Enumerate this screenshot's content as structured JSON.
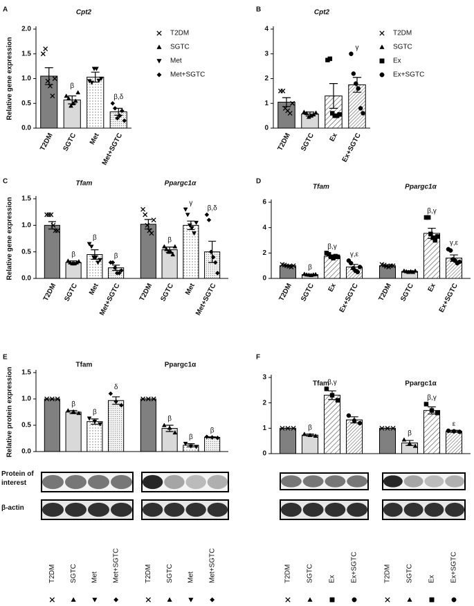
{
  "chart_data": [
    {
      "panel": "A",
      "type": "bar",
      "title": "Cpt2",
      "title_italic": true,
      "ylabel": "Relative gene expression",
      "legend": true,
      "categories": [
        "T2DM",
        "SGTC",
        "Met",
        "Met+SGTC"
      ],
      "markers": [
        "x",
        "tri-up",
        "tri-down",
        "diamond"
      ],
      "fills": [
        "#808080",
        "#d9d9d9",
        "dots",
        "dots-light"
      ],
      "ylim": [
        0,
        2
      ],
      "yticks": [
        {
          "value": 0,
          "label": "0.0"
        },
        {
          "value": 0.5,
          "label": "0.5"
        },
        {
          "value": 1,
          "label": "1.0"
        },
        {
          "value": 1.5,
          "label": "1.5"
        },
        {
          "value": 2,
          "label": "2.0"
        }
      ],
      "groups": [
        {
          "values": [
            1.05,
            0.57,
            1.03,
            0.33
          ],
          "errors": [
            0.17,
            0.08,
            0.1,
            0.07
          ],
          "points": [
            [
              1.5,
              1.6,
              0.95,
              0.85,
              0.65,
              1.0
            ],
            [
              0.65,
              0.6,
              0.45,
              0.5,
              0.55,
              0.72
            ],
            [
              0.95,
              0.92,
              1.2,
              1.2,
              0.96,
              1.0
            ],
            [
              0.5,
              0.4,
              0.2,
              0.25,
              0.35,
              0.15
            ]
          ],
          "annotations": [
            null,
            "β",
            null,
            "β,δ"
          ]
        }
      ]
    },
    {
      "panel": "B",
      "type": "bar",
      "title": "Cpt2",
      "title_italic": true,
      "legend": true,
      "categories": [
        "T2DM",
        "SGTC",
        "Ex",
        "Ex+SGTC"
      ],
      "markers": [
        "x",
        "tri-up",
        "square",
        "circle"
      ],
      "fills": [
        "#808080",
        "#d9d9d9",
        "hatch",
        "hatch-dense"
      ],
      "ylim": [
        0,
        4
      ],
      "yticks": [
        0,
        1,
        2,
        3,
        4
      ],
      "groups": [
        {
          "values": [
            1.05,
            0.57,
            1.3,
            1.75
          ],
          "errors": [
            0.18,
            0.08,
            0.5,
            0.3
          ],
          "points": [
            [
              1.5,
              1.5,
              0.8,
              0.7,
              0.6,
              1.0
            ],
            [
              0.65,
              0.6,
              0.45,
              0.5,
              0.55,
              0.62
            ],
            [
              2.75,
              2.8,
              0.6,
              0.5,
              0.5,
              0.55
            ],
            [
              3.0,
              2.2,
              1.8,
              1.6,
              0.8,
              0.6
            ]
          ],
          "annotations": [
            null,
            null,
            null,
            "γ"
          ]
        }
      ]
    },
    {
      "panel": "C",
      "type": "bar",
      "title_italic": true,
      "ylabel": "Relative gene expression",
      "categories": [
        "T2DM",
        "SGTC",
        "Met",
        "Met+SGTC"
      ],
      "markers": [
        "x",
        "tri-up",
        "tri-down",
        "diamond"
      ],
      "fills": [
        "#808080",
        "#d9d9d9",
        "dots",
        "dots-light"
      ],
      "ylim": [
        0,
        1.5
      ],
      "yticks": [
        {
          "value": 0,
          "label": "0.0"
        },
        {
          "value": 0.5,
          "label": "0.5"
        },
        {
          "value": 1,
          "label": "1.0"
        },
        {
          "value": 1.5,
          "label": "1.5"
        }
      ],
      "groups": [
        {
          "title": "Tfam",
          "values": [
            1.0,
            0.3,
            0.45,
            0.2
          ],
          "errors": [
            0.07,
            0.03,
            0.09,
            0.05
          ],
          "points": [
            [
              1.2,
              1.2,
              1.2,
              1.0,
              0.9,
              0.9
            ],
            [
              0.33,
              0.3,
              0.28,
              0.28,
              0.3,
              0.32
            ],
            [
              0.65,
              0.6,
              0.4,
              0.4,
              0.3,
              0.35
            ],
            [
              0.3,
              0.3,
              0.2,
              0.1,
              0.1,
              0.15
            ]
          ],
          "annotations": [
            null,
            "β",
            "β",
            "β"
          ]
        },
        {
          "title": "Ppargc1α",
          "values": [
            1.02,
            0.54,
            1.0,
            0.5
          ],
          "errors": [
            0.09,
            0.05,
            0.08,
            0.2
          ],
          "points": [
            [
              1.3,
              1.2,
              1.0,
              0.9,
              0.85,
              1.1
            ],
            [
              0.6,
              0.55,
              0.5,
              0.5,
              0.45,
              0.6
            ],
            [
              1.3,
              1.2,
              1.0,
              0.95,
              0.85,
              1.05
            ],
            [
              1.2,
              1.1,
              0.5,
              0.4,
              0.3,
              0.1
            ]
          ],
          "annotations": [
            null,
            "β",
            "γ",
            "β,δ"
          ]
        }
      ]
    },
    {
      "panel": "D",
      "type": "bar",
      "title_italic": true,
      "categories": [
        "T2DM",
        "SGTC",
        "Ex",
        "Ex+SGTC"
      ],
      "markers": [
        "x",
        "tri-up",
        "square",
        "circle"
      ],
      "fills": [
        "#808080",
        "#d9d9d9",
        "hatch",
        "hatch-dense"
      ],
      "ylim": [
        0,
        6
      ],
      "yticks": [
        0,
        2,
        4,
        6
      ],
      "groups": [
        {
          "title": "Tfam",
          "values": [
            1.0,
            0.3,
            1.75,
            0.9
          ],
          "errors": [
            0.05,
            0.03,
            0.1,
            0.2
          ],
          "points": [
            [
              1.1,
              1.05,
              1.0,
              0.95,
              0.9,
              1.0
            ],
            [
              0.35,
              0.3,
              0.28,
              0.25,
              0.3,
              0.32
            ],
            [
              2.0,
              1.9,
              1.7,
              1.6,
              1.75,
              1.7
            ],
            [
              1.4,
              1.2,
              0.8,
              0.6,
              0.5,
              0.9
            ]
          ],
          "annotations": [
            null,
            "β",
            "β,γ",
            "γ,ε"
          ]
        },
        {
          "title": "Ppargc1α",
          "values": [
            1.0,
            0.55,
            3.55,
            1.6
          ],
          "errors": [
            0.08,
            0.05,
            0.4,
            0.25
          ],
          "points": [
            [
              1.1,
              1.05,
              0.95,
              0.9,
              1.0,
              1.0
            ],
            [
              0.6,
              0.55,
              0.5,
              0.55,
              0.5,
              0.6
            ],
            [
              4.8,
              4.8,
              3.5,
              3.2,
              3.0,
              3.3
            ],
            [
              2.3,
              2.2,
              1.5,
              1.4,
              1.2,
              1.3
            ]
          ],
          "annotations": [
            null,
            null,
            "β,γ",
            "γ,ε"
          ]
        }
      ]
    },
    {
      "panel": "E",
      "type": "bar",
      "title_italic": false,
      "ylabel": "Relative protein expression",
      "labels_below": true,
      "blot_rows": [
        "Protein of interest",
        "β-actin"
      ],
      "categories": [
        "T2DM",
        "SGTC",
        "Met",
        "Met+SGTC"
      ],
      "markers": [
        "x",
        "tri-up",
        "tri-down",
        "diamond"
      ],
      "fills": [
        "#808080",
        "#d9d9d9",
        "dots",
        "dots-light"
      ],
      "ylim": [
        0,
        1.5
      ],
      "yticks": [
        {
          "value": 0,
          "label": "0.0"
        },
        {
          "value": 0.5,
          "label": "0.5"
        },
        {
          "value": 1,
          "label": "1.0"
        },
        {
          "value": 1.5,
          "label": "1.5"
        }
      ],
      "groups": [
        {
          "title": "Tfam",
          "values": [
            1.0,
            0.75,
            0.57,
            0.97
          ],
          "errors": [
            0,
            0.03,
            0.05,
            0.07
          ],
          "points": [
            [
              1,
              1,
              1
            ],
            [
              0.78,
              0.76,
              0.73
            ],
            [
              0.63,
              0.57,
              0.52
            ],
            [
              1.1,
              0.95,
              0.88
            ]
          ],
          "annotations": [
            null,
            "β",
            "β",
            "δ"
          ]
        },
        {
          "title": "Ppargc1α",
          "values": [
            1.0,
            0.44,
            0.12,
            0.27
          ],
          "errors": [
            0,
            0.06,
            0.03,
            0.01
          ],
          "points": [
            [
              1,
              1,
              1
            ],
            [
              0.5,
              0.45,
              0.36
            ],
            [
              0.15,
              0.1,
              0.09
            ],
            [
              0.28,
              0.27,
              0.26
            ]
          ],
          "annotations": [
            null,
            "β",
            "β",
            "β"
          ]
        }
      ]
    },
    {
      "panel": "F",
      "type": "bar",
      "title_italic": false,
      "labels_below": true,
      "categories": [
        "T2DM",
        "SGTC",
        "Ex",
        "Ex+SGTC"
      ],
      "markers": [
        "x",
        "tri-up",
        "square",
        "circle"
      ],
      "fills": [
        "#808080",
        "#d9d9d9",
        "hatch",
        "hatch-dense"
      ],
      "ylim": [
        0,
        3
      ],
      "yticks": [
        0,
        1,
        2,
        3
      ],
      "groups": [
        {
          "title": "Tfam",
          "values": [
            1.0,
            0.73,
            2.3,
            1.33
          ],
          "errors": [
            0,
            0.04,
            0.17,
            0.12
          ],
          "points": [
            [
              1,
              1,
              1
            ],
            [
              0.77,
              0.73,
              0.7
            ],
            [
              2.55,
              2.3,
              2.1
            ],
            [
              1.5,
              1.3,
              1.2
            ]
          ],
          "annotations": [
            null,
            "β",
            "β,γ",
            null
          ]
        },
        {
          "title": "Ppargc1α",
          "values": [
            1.0,
            0.42,
            1.7,
            0.88
          ],
          "errors": [
            0,
            0.1,
            0.14,
            0.04
          ],
          "points": [
            [
              1,
              1,
              1
            ],
            [
              0.55,
              0.4,
              0.3
            ],
            [
              1.95,
              1.7,
              1.6
            ],
            [
              0.9,
              0.88,
              0.86
            ]
          ],
          "annotations": [
            null,
            "β",
            "β,γ",
            "ε"
          ]
        }
      ]
    }
  ]
}
